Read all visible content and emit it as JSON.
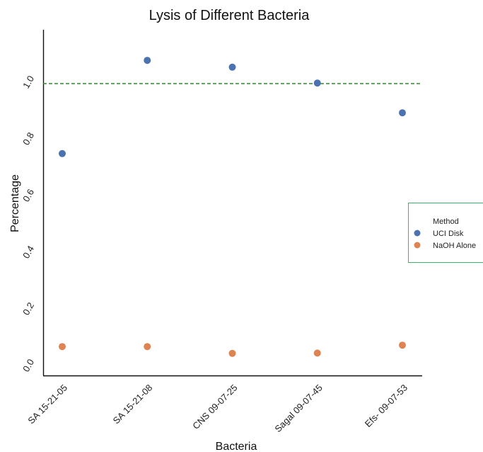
{
  "chart_data": {
    "type": "scatter",
    "title": "Lysis of Different Bacteria",
    "xlabel": "Bacteria",
    "ylabel": "Percentage",
    "categories": [
      "SA 15-21-05",
      "SA 15-21-08",
      "CNS 09-07-25",
      "Sagal 09-07-45",
      "Efs- 09-07-53"
    ],
    "series": [
      {
        "name": "UCI Disk",
        "color": "#4c72b0",
        "values": [
          0.753,
          1.082,
          1.058,
          1.002,
          0.897
        ]
      },
      {
        "name": "NaOH Alone",
        "color": "#dd8452",
        "values": [
          0.072,
          0.072,
          0.048,
          0.049,
          0.077
        ]
      }
    ],
    "ylim": [
      -0.03,
      1.19
    ],
    "yticks": [
      "0.0",
      "0.2",
      "0.4",
      "0.6",
      "0.8",
      "1.0"
    ],
    "ytick_values": [
      0.0,
      0.2,
      0.4,
      0.6,
      0.8,
      1.0
    ],
    "reference_line": {
      "value": 1.0,
      "color": "#2e8b2e",
      "style": "dashed"
    },
    "legend": {
      "title": "Method",
      "placement": "center-right",
      "border_color": "#3cb371"
    },
    "grid": false
  }
}
